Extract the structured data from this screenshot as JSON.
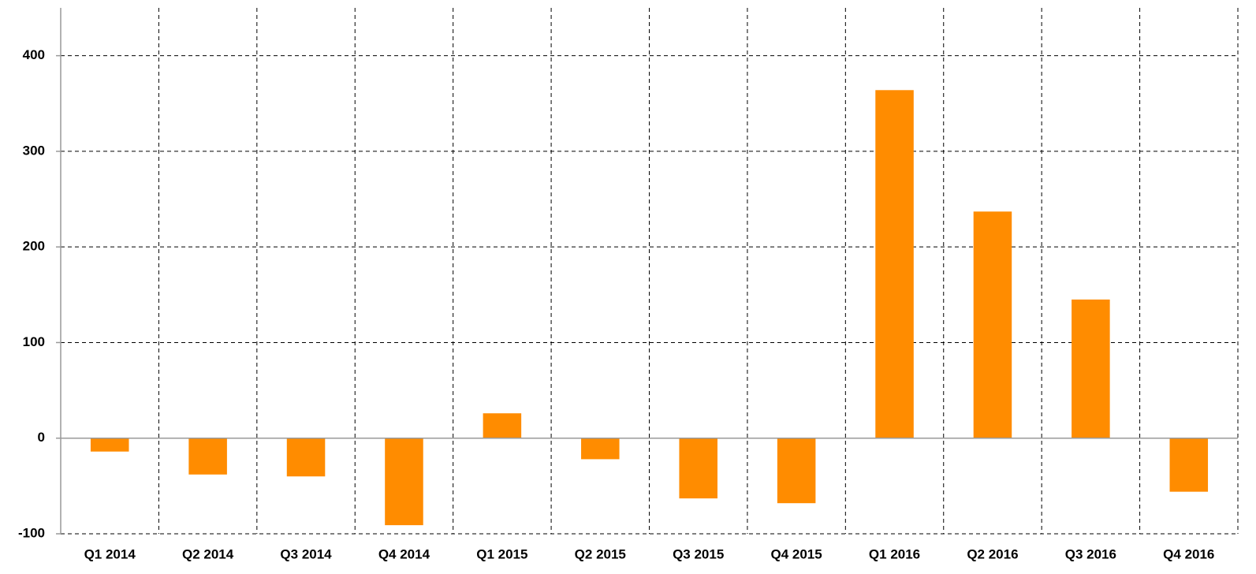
{
  "chart_data": {
    "type": "bar",
    "categories": [
      "Q1 2014",
      "Q2 2014",
      "Q3 2014",
      "Q4 2014",
      "Q1 2015",
      "Q2 2015",
      "Q3 2015",
      "Q4 2015",
      "Q1 2016",
      "Q2 2016",
      "Q3 2016",
      "Q4 2016"
    ],
    "values": [
      -14,
      -38,
      -40,
      -91,
      26,
      -22,
      -63,
      -68,
      364,
      237,
      145,
      -56
    ],
    "color": "#ff8c00",
    "ylim": [
      -100,
      450
    ],
    "yticks": [
      -100,
      0,
      100,
      200,
      300,
      400
    ],
    "grid": true
  }
}
